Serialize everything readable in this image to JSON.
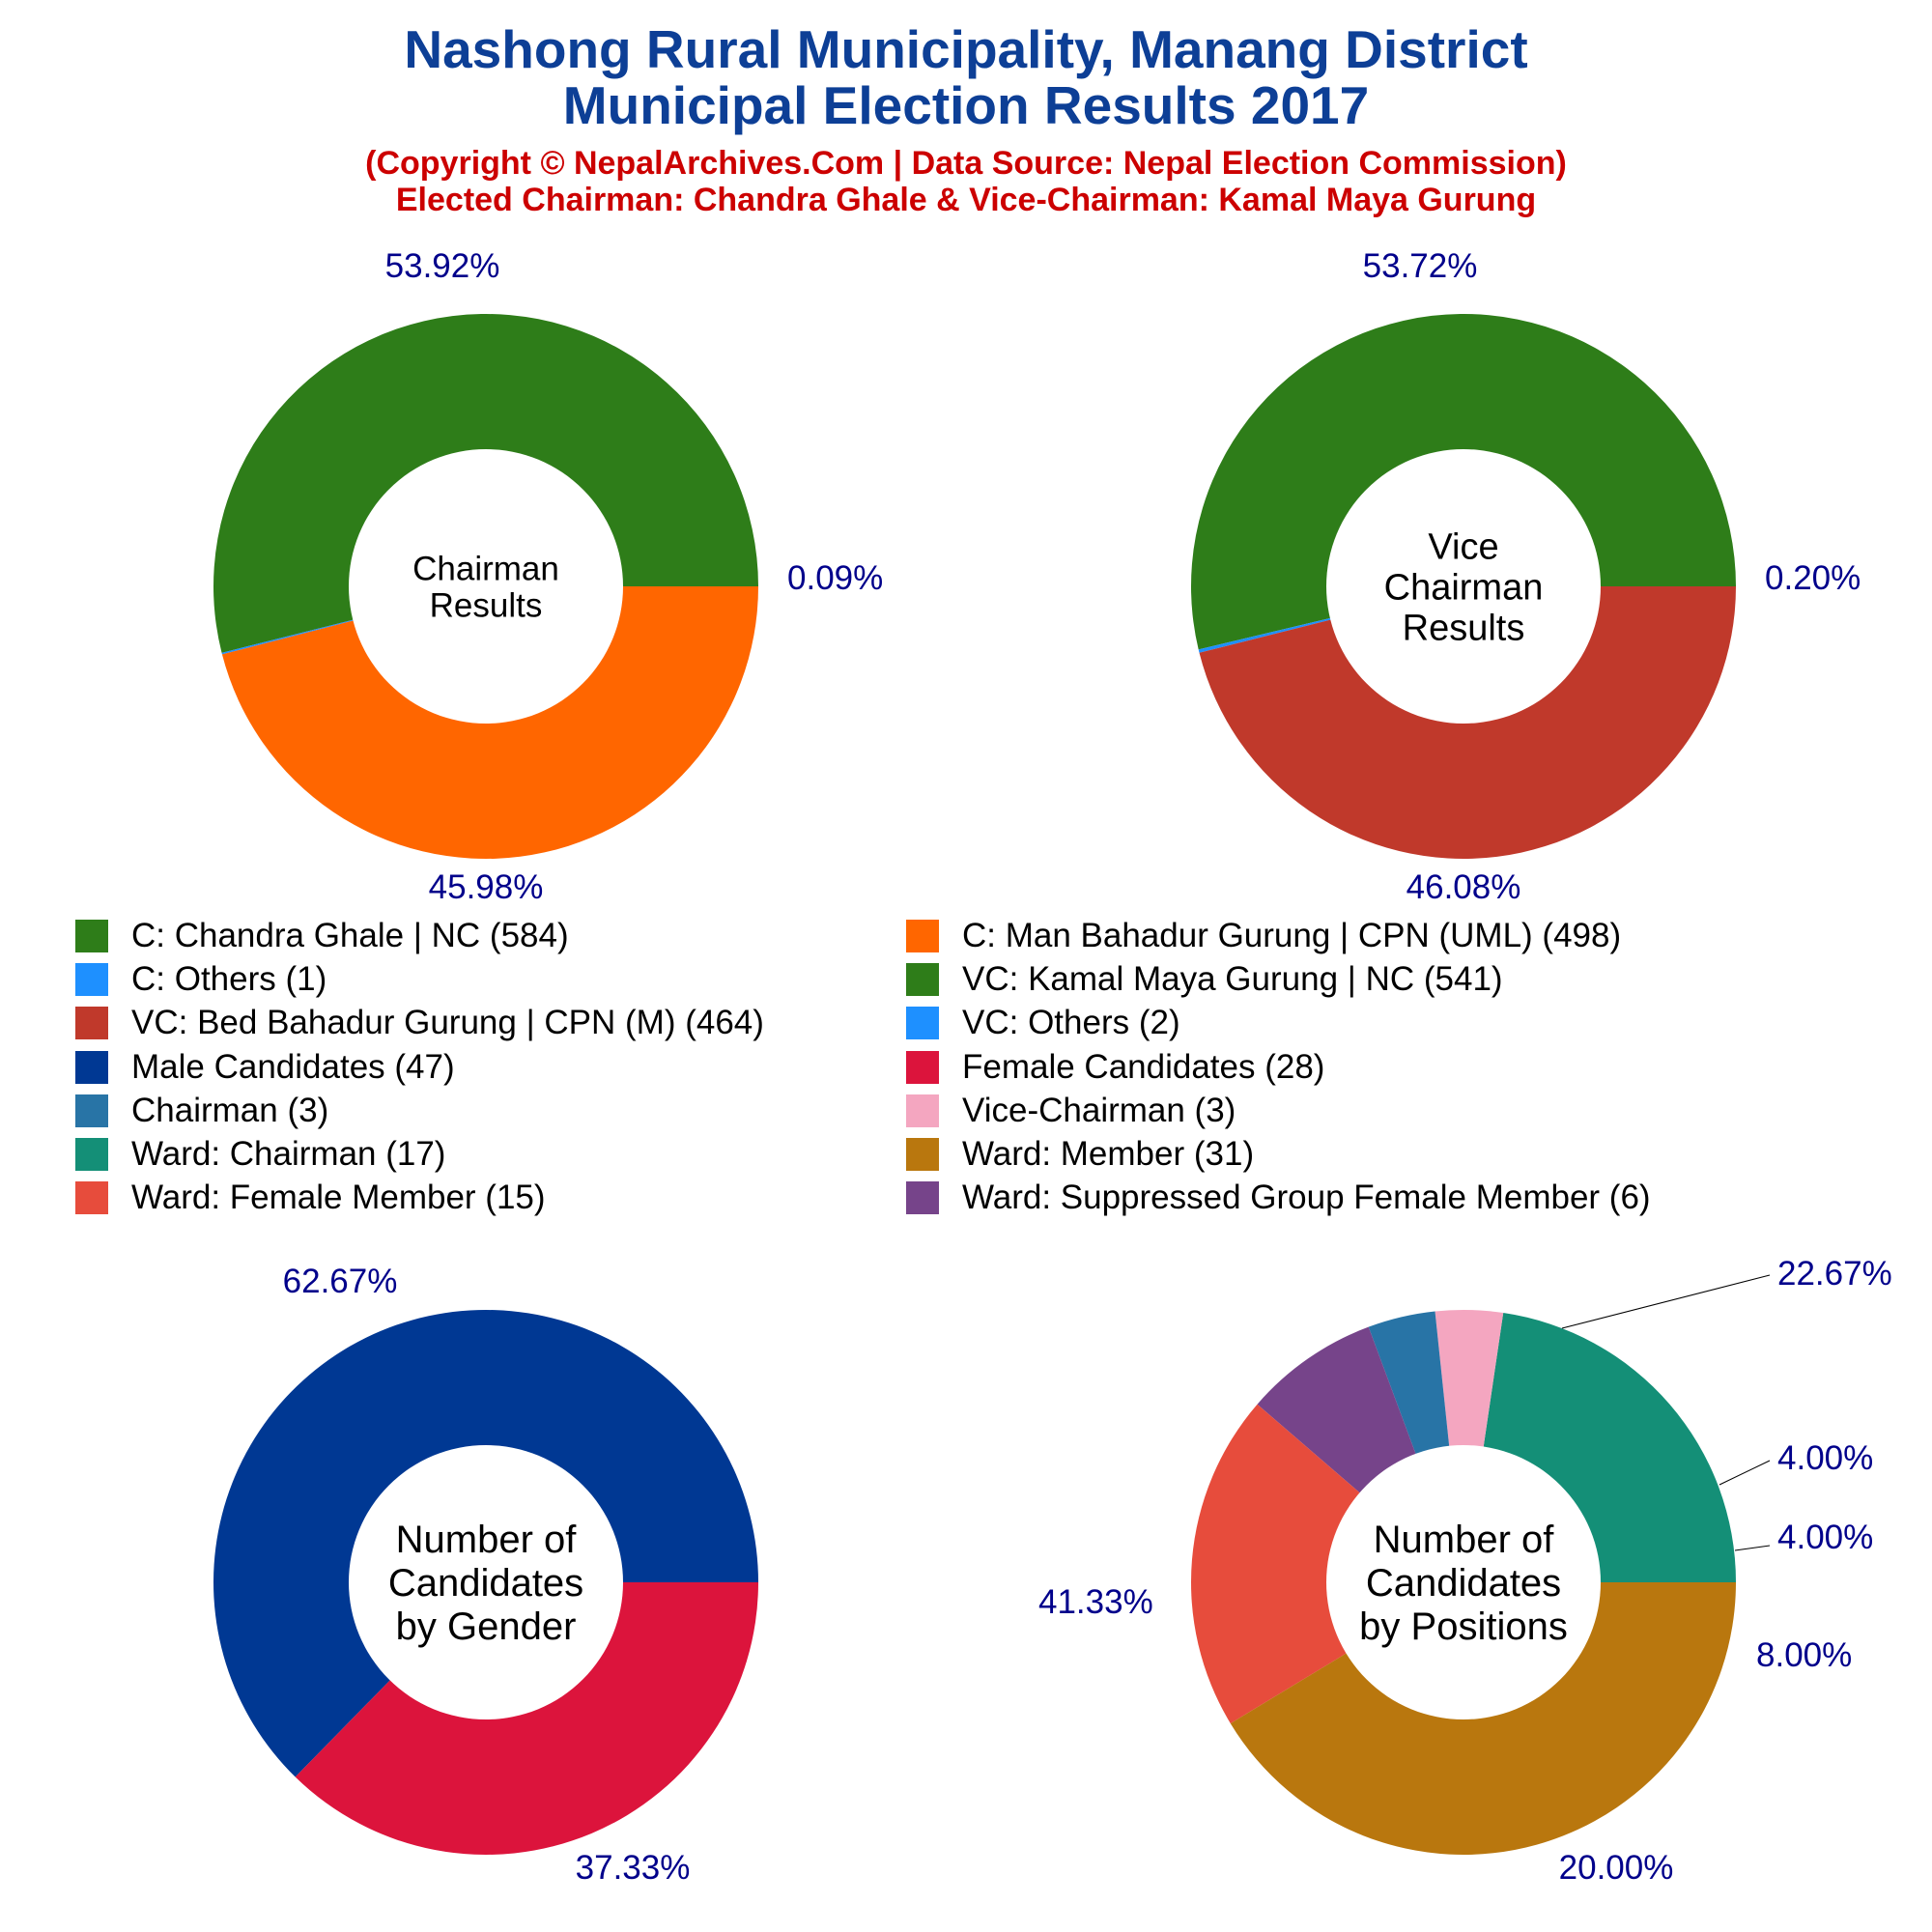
{
  "header": {
    "title_line1": "Nashong Rural Municipality, Manang District",
    "title_line2": "Municipal Election Results 2017",
    "subtitle_line1": "(Copyright © NepalArchives.Com | Data Source: Nepal Election Commission)",
    "subtitle_line2": "Elected Chairman: Chandra Ghale & Vice-Chairman: Kamal Maya Gurung"
  },
  "legend": [
    {
      "label": "C: Chandra Ghale | NC (584)",
      "color": "#2e7d19"
    },
    {
      "label": "C: Man Bahadur Gurung | CPN (UML) (498)",
      "color": "#ff6600"
    },
    {
      "label": "C: Others (1)",
      "color": "#1e90ff"
    },
    {
      "label": "VC: Kamal Maya Gurung | NC (541)",
      "color": "#2e7d19"
    },
    {
      "label": "VC: Bed Bahadur Gurung | CPN (M) (464)",
      "color": "#c0392b"
    },
    {
      "label": "VC: Others (2)",
      "color": "#1e90ff"
    },
    {
      "label": "Male Candidates (47)",
      "color": "#003893"
    },
    {
      "label": "Female Candidates (28)",
      "color": "#dc143c"
    },
    {
      "label": "Chairman (3)",
      "color": "#2874a6"
    },
    {
      "label": "Vice-Chairman (3)",
      "color": "#f4a6c0"
    },
    {
      "label": "Ward: Chairman (17)",
      "color": "#148f77"
    },
    {
      "label": "Ward: Member (31)",
      "color": "#b9770e"
    },
    {
      "label": "Ward: Female Member (15)",
      "color": "#e74c3c"
    },
    {
      "label": "Ward: Suppressed Group Female Member (6)",
      "color": "#76448a"
    }
  ],
  "chart_data": [
    {
      "type": "pie",
      "center_label": [
        "Chairman",
        "Results"
      ],
      "slices": [
        {
          "name": "C: Chandra Ghale | NC",
          "value": 584,
          "percent_label": "53.92%",
          "color": "#2e7d19"
        },
        {
          "name": "C: Others",
          "value": 1,
          "percent_label": "0.09%",
          "color": "#1e90ff"
        },
        {
          "name": "C: Man Bahadur Gurung | CPN (UML)",
          "value": 498,
          "percent_label": "45.98%",
          "color": "#ff6600"
        }
      ]
    },
    {
      "type": "pie",
      "center_label": [
        "Vice",
        "Chairman",
        "Results"
      ],
      "slices": [
        {
          "name": "VC: Kamal Maya Gurung | NC",
          "value": 541,
          "percent_label": "53.72%",
          "color": "#2e7d19"
        },
        {
          "name": "VC: Others",
          "value": 2,
          "percent_label": "0.20%",
          "color": "#1e90ff"
        },
        {
          "name": "VC: Bed Bahadur Gurung | CPN (M)",
          "value": 464,
          "percent_label": "46.08%",
          "color": "#c0392b"
        }
      ]
    },
    {
      "type": "pie",
      "center_label": [
        "Number of",
        "Candidates",
        "by Gender"
      ],
      "slices": [
        {
          "name": "Male Candidates",
          "value": 47,
          "percent_label": "62.67%",
          "color": "#003893"
        },
        {
          "name": "Female Candidates",
          "value": 28,
          "percent_label": "37.33%",
          "color": "#dc143c"
        }
      ]
    },
    {
      "type": "pie",
      "center_label": [
        "Number of",
        "Candidates",
        "by Positions"
      ],
      "slices": [
        {
          "name": "Ward: Chairman",
          "value": 17,
          "percent_label": "22.67%",
          "color": "#148f77"
        },
        {
          "name": "Vice-Chairman",
          "value": 3,
          "percent_label": "4.00%",
          "color": "#f4a6c0"
        },
        {
          "name": "Chairman",
          "value": 3,
          "percent_label": "4.00%",
          "color": "#2874a6"
        },
        {
          "name": "Ward: Suppressed Group Female Member",
          "value": 6,
          "percent_label": "8.00%",
          "color": "#76448a"
        },
        {
          "name": "Ward: Female Member",
          "value": 15,
          "percent_label": "20.00%",
          "color": "#e74c3c"
        },
        {
          "name": "Ward: Member",
          "value": 31,
          "percent_label": "41.33%",
          "color": "#b9770e"
        }
      ]
    }
  ]
}
